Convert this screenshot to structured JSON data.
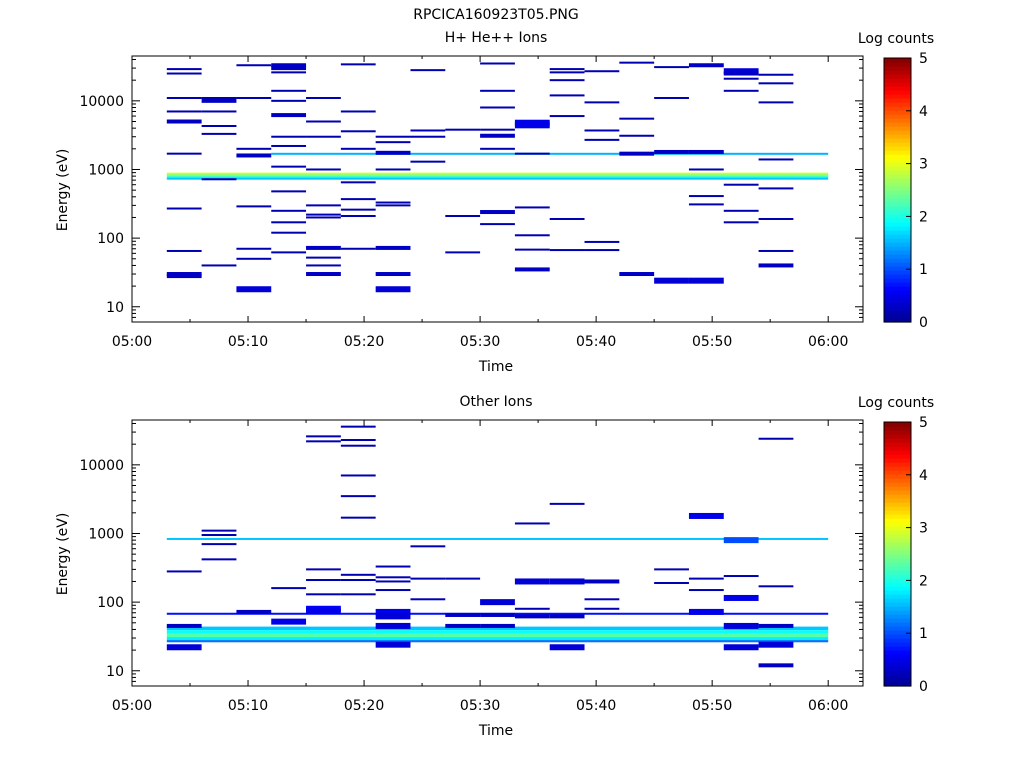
{
  "figure_title": "RPCICA160923T05.PNG",
  "colors": {
    "background": "#ffffff",
    "axes": "#000000",
    "colormap": [
      "#00008f",
      "#0000ff",
      "#0080ff",
      "#00ffff",
      "#80ff80",
      "#ffff00",
      "#ff8000",
      "#ff0000",
      "#800000"
    ]
  },
  "chart_data": [
    {
      "type": "heatmap",
      "title": "H+ He++ Ions",
      "xlabel": "Time",
      "ylabel": "Energy (eV)",
      "x_ticks": [
        "05:00",
        "05:10",
        "05:20",
        "05:30",
        "05:40",
        "05:50",
        "06:00"
      ],
      "xlim": [
        "05:00",
        "06:03"
      ],
      "y_scale": "log",
      "ylim": [
        6,
        45000
      ],
      "y_ticks": [
        10,
        100,
        1000,
        10000
      ],
      "y_tick_labels": [
        "10",
        "100",
        "1000",
        "10000"
      ],
      "colorbar": {
        "label": "Log counts",
        "range": [
          0,
          5
        ],
        "ticks": [
          "0",
          "1",
          "2",
          "3",
          "4",
          "5"
        ]
      },
      "continuous_bands": [
        {
          "energy_low": 850,
          "energy_high": 900,
          "t_start": "05:03",
          "t_end": "06:00",
          "log_counts": 2.9
        },
        {
          "energy_low": 800,
          "energy_high": 850,
          "t_start": "05:03",
          "t_end": "06:00",
          "log_counts": 2.5
        },
        {
          "energy_low": 760,
          "energy_high": 800,
          "t_start": "05:03",
          "t_end": "06:00",
          "log_counts": 2.1
        },
        {
          "energy_low": 720,
          "energy_high": 760,
          "t_start": "05:03",
          "t_end": "06:00",
          "log_counts": 1.6
        },
        {
          "energy_low": 1650,
          "energy_high": 1750,
          "t_start": "05:12",
          "t_end": "06:00",
          "log_counts": 1.5
        }
      ],
      "columns": [
        {
          "t": "05:03",
          "energies": [
            29000,
            25000,
            11000,
            7000,
            5000,
            1700,
            270,
            65,
            30,
            28
          ],
          "log_counts": [
            0.2,
            0.2,
            0.2,
            0.2,
            0.3,
            0.2,
            0.2,
            0.2,
            0.3,
            0.3
          ]
        },
        {
          "t": "05:06",
          "energies": [
            11000,
            10000,
            7000,
            4300,
            3300,
            720,
            40
          ],
          "log_counts": [
            0.2,
            0.3,
            0.2,
            0.2,
            0.2,
            0.2,
            0.2
          ]
        },
        {
          "t": "05:09",
          "energies": [
            33000,
            11000,
            2000,
            1600,
            290,
            70,
            50,
            18
          ],
          "log_counts": [
            0.2,
            0.2,
            0.2,
            0.3,
            0.2,
            0.2,
            0.2,
            0.4
          ]
        },
        {
          "t": "05:12",
          "energies": [
            33000,
            30000,
            26000,
            14000,
            10000,
            6200,
            3000,
            2200,
            1100,
            480,
            250,
            170,
            120,
            62
          ],
          "log_counts": [
            0.3,
            0.3,
            0.2,
            0.2,
            0.2,
            0.3,
            0.2,
            0.2,
            0.2,
            0.2,
            0.2,
            0.2,
            0.2,
            0.2
          ]
        },
        {
          "t": "05:15",
          "energies": [
            11000,
            5000,
            3000,
            1000,
            300,
            220,
            200,
            72,
            52,
            40,
            30
          ],
          "log_counts": [
            0.2,
            0.2,
            0.2,
            0.2,
            0.2,
            0.2,
            0.2,
            0.3,
            0.2,
            0.2,
            0.3
          ]
        },
        {
          "t": "05:18",
          "energies": [
            34000,
            7000,
            3600,
            2000,
            650,
            370,
            260,
            210,
            70
          ],
          "log_counts": [
            0.2,
            0.2,
            0.2,
            0.2,
            0.2,
            0.2,
            0.2,
            0.2,
            0.2
          ]
        },
        {
          "t": "05:21",
          "energies": [
            3000,
            2500,
            1750,
            1000,
            330,
            300,
            72,
            30,
            18
          ],
          "log_counts": [
            0.2,
            0.2,
            0.3,
            0.2,
            0.2,
            0.2,
            0.3,
            0.3,
            0.4
          ]
        },
        {
          "t": "05:24",
          "energies": [
            28000,
            3700,
            3000,
            1300
          ],
          "log_counts": [
            0.2,
            0.2,
            0.2,
            0.2
          ]
        },
        {
          "t": "05:27",
          "energies": [
            3800,
            210,
            62
          ],
          "log_counts": [
            0.2,
            0.2,
            0.2
          ]
        },
        {
          "t": "05:30",
          "energies": [
            35000,
            14000,
            8000,
            3800,
            3100,
            2000,
            240,
            160
          ],
          "log_counts": [
            0.2,
            0.2,
            0.2,
            0.2,
            0.3,
            0.2,
            0.3,
            0.2
          ]
        },
        {
          "t": "05:33",
          "energies": [
            4800,
            4400,
            1700,
            280,
            110,
            68,
            35
          ],
          "log_counts": [
            0.5,
            0.5,
            0.2,
            0.2,
            0.2,
            0.2,
            0.3
          ]
        },
        {
          "t": "05:36",
          "energies": [
            29000,
            26000,
            20000,
            12000,
            6000,
            190,
            67
          ],
          "log_counts": [
            0.2,
            0.2,
            0.2,
            0.2,
            0.2,
            0.2,
            0.2
          ]
        },
        {
          "t": "05:39",
          "energies": [
            27000,
            9500,
            3700,
            2700,
            88,
            67
          ],
          "log_counts": [
            0.2,
            0.2,
            0.2,
            0.2,
            0.2,
            0.2
          ]
        },
        {
          "t": "05:42",
          "energies": [
            36000,
            5500,
            3100,
            1700,
            30
          ],
          "log_counts": [
            0.2,
            0.2,
            0.2,
            0.3,
            0.3
          ]
        },
        {
          "t": "05:45",
          "energies": [
            31000,
            11000,
            1800,
            24
          ],
          "log_counts": [
            0.2,
            0.2,
            0.3,
            0.4
          ]
        },
        {
          "t": "05:48",
          "energies": [
            33000,
            1800,
            1000,
            410,
            310,
            24
          ],
          "log_counts": [
            0.3,
            0.3,
            0.2,
            0.2,
            0.2,
            0.4
          ]
        },
        {
          "t": "05:51",
          "energies": [
            27000,
            25000,
            21000,
            14000,
            600,
            250,
            170
          ],
          "log_counts": [
            0.4,
            0.3,
            0.2,
            0.2,
            0.2,
            0.2,
            0.2
          ]
        },
        {
          "t": "05:54",
          "energies": [
            24000,
            18000,
            9500,
            1400,
            530,
            190,
            65,
            40
          ],
          "log_counts": [
            0.2,
            0.2,
            0.2,
            0.2,
            0.2,
            0.2,
            0.2,
            0.3
          ]
        }
      ]
    },
    {
      "type": "heatmap",
      "title": "Other Ions",
      "xlabel": "Time",
      "ylabel": "Energy (eV)",
      "x_ticks": [
        "05:00",
        "05:10",
        "05:20",
        "05:30",
        "05:40",
        "05:50",
        "06:00"
      ],
      "xlim": [
        "05:00",
        "06:03"
      ],
      "y_scale": "log",
      "ylim": [
        6,
        45000
      ],
      "y_ticks": [
        10,
        100,
        1000,
        10000
      ],
      "y_tick_labels": [
        "10",
        "100",
        "1000",
        "10000"
      ],
      "colorbar": {
        "label": "Log counts",
        "range": [
          0,
          5
        ],
        "ticks": [
          "0",
          "1",
          "2",
          "3",
          "4",
          "5"
        ]
      },
      "continuous_bands": [
        {
          "energy_low": 820,
          "energy_high": 860,
          "t_start": "05:03",
          "t_end": "06:00",
          "log_counts": 1.6
        },
        {
          "energy_low": 66,
          "energy_high": 70,
          "t_start": "05:03",
          "t_end": "06:00",
          "log_counts": 0.7
        },
        {
          "energy_low": 39,
          "energy_high": 44,
          "t_start": "05:03",
          "t_end": "06:00",
          "log_counts": 1.6
        },
        {
          "energy_low": 35,
          "energy_high": 39,
          "t_start": "05:03",
          "t_end": "06:00",
          "log_counts": 1.9
        },
        {
          "energy_low": 31,
          "energy_high": 35,
          "t_start": "05:03",
          "t_end": "06:00",
          "log_counts": 2.3
        },
        {
          "energy_low": 28,
          "energy_high": 31,
          "t_start": "05:03",
          "t_end": "06:00",
          "log_counts": 1.8
        },
        {
          "energy_low": 26,
          "energy_high": 28,
          "t_start": "05:03",
          "t_end": "06:00",
          "log_counts": 1.2
        }
      ],
      "columns": [
        {
          "t": "05:03",
          "energies": [
            280,
            45,
            22
          ],
          "log_counts": [
            0.2,
            0.3,
            0.4
          ]
        },
        {
          "t": "05:06",
          "energies": [
            1100,
            950,
            700,
            420
          ],
          "log_counts": [
            0.2,
            0.2,
            0.2,
            0.2
          ]
        },
        {
          "t": "05:09",
          "energies": [
            72
          ],
          "log_counts": [
            0.3
          ]
        },
        {
          "t": "05:12",
          "energies": [
            160,
            52
          ],
          "log_counts": [
            0.2,
            0.5
          ]
        },
        {
          "t": "05:15",
          "energies": [
            26000,
            22000,
            300,
            210,
            130,
            80,
            74
          ],
          "log_counts": [
            0.2,
            0.2,
            0.2,
            0.2,
            0.2,
            0.6,
            0.5
          ]
        },
        {
          "t": "05:18",
          "energies": [
            36000,
            23000,
            19000,
            7000,
            3500,
            1700,
            250,
            210,
            130
          ],
          "log_counts": [
            0.2,
            0.2,
            0.2,
            0.2,
            0.2,
            0.2,
            0.2,
            0.2,
            0.2
          ]
        },
        {
          "t": "05:21",
          "energies": [
            330,
            230,
            200,
            150,
            72,
            62,
            45,
            24
          ],
          "log_counts": [
            0.2,
            0.2,
            0.2,
            0.2,
            0.5,
            0.4,
            0.4,
            0.4
          ]
        },
        {
          "t": "05:24",
          "energies": [
            650,
            220,
            110
          ],
          "log_counts": [
            0.2,
            0.2,
            0.2
          ]
        },
        {
          "t": "05:27",
          "energies": [
            220,
            65,
            45
          ],
          "log_counts": [
            0.2,
            0.3,
            0.3
          ]
        },
        {
          "t": "05:30",
          "energies": [
            100,
            65,
            45
          ],
          "log_counts": [
            0.4,
            0.3,
            0.3
          ]
        },
        {
          "t": "05:33",
          "energies": [
            1400,
            200,
            80,
            62
          ],
          "log_counts": [
            0.2,
            0.4,
            0.2,
            0.3
          ]
        },
        {
          "t": "05:36",
          "energies": [
            2700,
            200,
            62,
            22
          ],
          "log_counts": [
            0.2,
            0.4,
            0.3,
            0.4
          ]
        },
        {
          "t": "05:39",
          "energies": [
            200,
            110,
            80
          ],
          "log_counts": [
            0.3,
            0.2,
            0.2
          ]
        },
        {
          "t": "05:45",
          "energies": [
            300,
            190
          ],
          "log_counts": [
            0.2,
            0.2
          ]
        },
        {
          "t": "05:48",
          "energies": [
            1800,
            220,
            150,
            72
          ],
          "log_counts": [
            0.5,
            0.2,
            0.2,
            0.5
          ]
        },
        {
          "t": "05:51",
          "energies": [
            800,
            240,
            115,
            45,
            22
          ],
          "log_counts": [
            1.0,
            0.2,
            0.5,
            0.4,
            0.4
          ]
        },
        {
          "t": "05:54",
          "energies": [
            24000,
            170,
            45,
            24,
            12
          ],
          "log_counts": [
            0.2,
            0.2,
            0.3,
            0.4,
            0.3
          ]
        }
      ]
    }
  ]
}
